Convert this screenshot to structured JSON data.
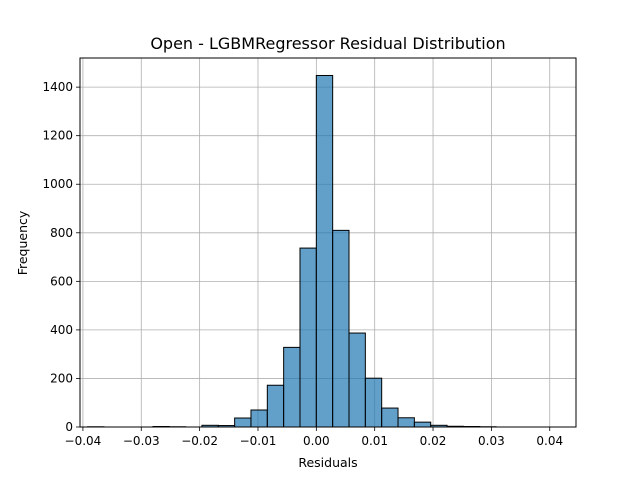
{
  "chart_data": {
    "type": "bar",
    "subtype": "histogram",
    "title": "Open - LGBMRegressor Residual Distribution",
    "xlabel": "Residuals",
    "ylabel": "Frequency",
    "xlim": [
      -0.0405,
      0.0445
    ],
    "ylim": [
      0,
      1520
    ],
    "xticks": [
      -0.04,
      -0.03,
      -0.02,
      -0.01,
      0.0,
      0.01,
      0.02,
      0.03,
      0.04
    ],
    "xtick_labels": [
      "−0.04",
      "−0.03",
      "−0.02",
      "−0.01",
      "0.00",
      "0.01",
      "0.02",
      "0.03",
      "0.04"
    ],
    "yticks": [
      0,
      200,
      400,
      600,
      800,
      1000,
      1200,
      1400
    ],
    "ytick_labels": [
      "0",
      "200",
      "400",
      "600",
      "800",
      "1000",
      "1200",
      "1400"
    ],
    "grid": true,
    "bar_color": "#1f77b4",
    "bar_alpha": 0.7,
    "edge_color": "#000000",
    "bin_edges": [
      -0.0392,
      -0.0364,
      -0.0336,
      -0.0308,
      -0.028,
      -0.0252,
      -0.0224,
      -0.0196,
      -0.0168,
      -0.014,
      -0.0112,
      -0.0084,
      -0.0056,
      -0.0028,
      0.0,
      0.0028,
      0.0056,
      0.0084,
      0.0112,
      0.014,
      0.0168,
      0.0196,
      0.0224,
      0.0252,
      0.028,
      0.0308,
      0.0336,
      0.0364,
      0.0392,
      0.042
    ],
    "values": [
      1,
      0,
      0,
      0,
      2,
      1,
      0,
      7,
      6,
      37,
      70,
      172,
      328,
      737,
      1448,
      810,
      387,
      201,
      78,
      38,
      20,
      7,
      3,
      2,
      1,
      0,
      0,
      0,
      0
    ]
  }
}
